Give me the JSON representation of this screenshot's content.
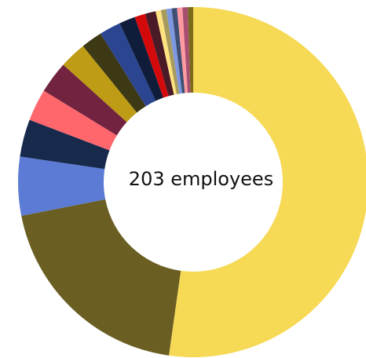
{
  "chart_data": {
    "type": "pie",
    "style": "donut",
    "center_label": "203 employees",
    "total": 203,
    "slices": [
      {
        "value": 106,
        "color": "#F6D955"
      },
      {
        "value": 40,
        "color": "#6B5E23"
      },
      {
        "value": 11,
        "color": "#5B7BD5"
      },
      {
        "value": 7,
        "color": "#172A4C"
      },
      {
        "value": 6,
        "color": "#FF676D"
      },
      {
        "value": 6,
        "color": "#72233F"
      },
      {
        "value": 5,
        "color": "#BE9C15"
      },
      {
        "value": 4,
        "color": "#3D3915"
      },
      {
        "value": 4,
        "color": "#2B4591"
      },
      {
        "value": 3,
        "color": "#0F1D3A"
      },
      {
        "value": 2,
        "color": "#D4090C"
      },
      {
        "value": 2,
        "color": "#4A1A26"
      },
      {
        "value": 1,
        "color": "#FFE380"
      },
      {
        "value": 1,
        "color": "#A69A5C"
      },
      {
        "value": 1,
        "color": "#7D98E0"
      },
      {
        "value": 1,
        "color": "#3E4F73"
      },
      {
        "value": 1,
        "color": "#FF9AA0"
      },
      {
        "value": 1,
        "color": "#A64F70"
      },
      {
        "value": 1,
        "color": "#7A6A1A"
      }
    ]
  }
}
